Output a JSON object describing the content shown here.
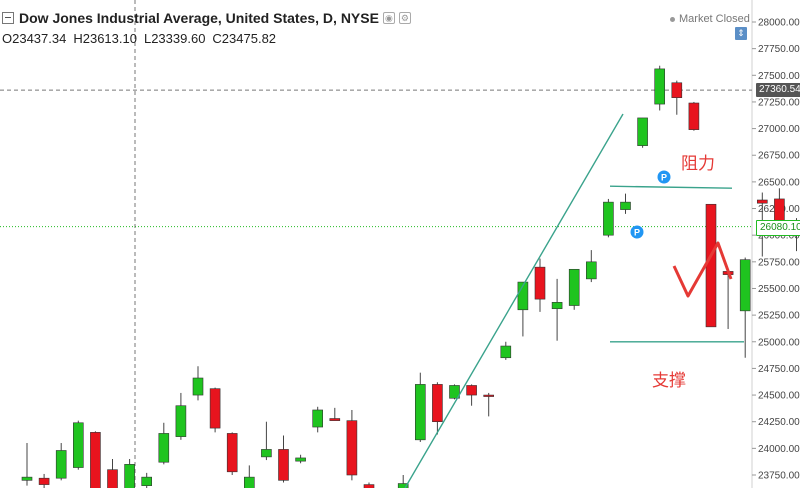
{
  "header": {
    "title": "Dow Jones Industrial Average, United States, D, NYSE",
    "settings_icon": "gear-icon",
    "eye_icon": "eye-icon"
  },
  "ohlc": {
    "open": "O23437.34",
    "high": "H23613.10",
    "low": "L23339.60",
    "close": "C23475.82"
  },
  "market_status": "Market Closed",
  "scale_button_icon": "auto-scale-icon",
  "scale_button_glyph": "⇕",
  "price_labels": {
    "crosshair": "27360.54",
    "last_price": "26080.10"
  },
  "annotations": {
    "resistance": "阻力",
    "support": "支撑",
    "marker_label": "P"
  },
  "colors": {
    "up": "#1fc41f",
    "down": "#e8141e",
    "trendline": "#3aa38c",
    "annotation": "#e53935",
    "last_price_line": "#22bb22",
    "marker": "#2196f3"
  },
  "chart_data": {
    "type": "candlestick",
    "y_ticks": [
      23750,
      24000,
      24250,
      24500,
      24750,
      25000,
      25250,
      25500,
      25750,
      26000,
      26250,
      26500,
      26750,
      27000,
      27250,
      27500,
      27750,
      28000
    ],
    "y_tick_labels": [
      "23750.00",
      "24000.00",
      "24250.00",
      "24500.00",
      "24750.00",
      "25000.00",
      "25250.00",
      "25500.00",
      "25750.00",
      "26000.00",
      "26250.00",
      "26500.00",
      "26750.00",
      "27000.00",
      "27250.00",
      "27500.00",
      "27750.00",
      "28000.00"
    ],
    "ylim": [
      23680,
      28080
    ],
    "candles": [
      {
        "o": 23700,
        "h": 24050,
        "l": 23650,
        "c": 23730
      },
      {
        "o": 23720,
        "h": 23760,
        "l": 23600,
        "c": 23660
      },
      {
        "o": 23720,
        "h": 24050,
        "l": 23700,
        "c": 23980
      },
      {
        "o": 23820,
        "h": 24260,
        "l": 23800,
        "c": 24240
      },
      {
        "o": 24150,
        "h": 24160,
        "l": 23500,
        "c": 23580
      },
      {
        "o": 23800,
        "h": 23900,
        "l": 23500,
        "c": 23500
      },
      {
        "o": 23500,
        "h": 23900,
        "l": 23400,
        "c": 23850
      },
      {
        "o": 23650,
        "h": 23770,
        "l": 23600,
        "c": 23730
      },
      {
        "o": 23870,
        "h": 24240,
        "l": 23850,
        "c": 24140
      },
      {
        "o": 24110,
        "h": 24520,
        "l": 24080,
        "c": 24400
      },
      {
        "o": 24500,
        "h": 24770,
        "l": 24450,
        "c": 24660
      },
      {
        "o": 24560,
        "h": 24570,
        "l": 24150,
        "c": 24190
      },
      {
        "o": 24140,
        "h": 24150,
        "l": 23750,
        "c": 23780
      },
      {
        "o": 23620,
        "h": 23840,
        "l": 23560,
        "c": 23730
      },
      {
        "o": 23920,
        "h": 24250,
        "l": 23890,
        "c": 23990
      },
      {
        "o": 23990,
        "h": 24120,
        "l": 23680,
        "c": 23700
      },
      {
        "o": 23880,
        "h": 23940,
        "l": 23860,
        "c": 23910
      },
      {
        "o": 24200,
        "h": 24390,
        "l": 24150,
        "c": 24360
      },
      {
        "o": 24280,
        "h": 24380,
        "l": 24270,
        "c": 24260
      },
      {
        "o": 24260,
        "h": 24360,
        "l": 23700,
        "c": 23750
      },
      {
        "o": 23660,
        "h": 23680,
        "l": 23500,
        "c": 23550
      },
      {
        "o": 23600,
        "h": 23610,
        "l": 23500,
        "c": 23550
      },
      {
        "o": 23610,
        "h": 23750,
        "l": 23600,
        "c": 23670
      },
      {
        "o": 24080,
        "h": 24710,
        "l": 24060,
        "c": 24600
      },
      {
        "o": 24600,
        "h": 24620,
        "l": 24130,
        "c": 24250
      },
      {
        "o": 24470,
        "h": 24600,
        "l": 24460,
        "c": 24590
      },
      {
        "o": 24590,
        "h": 24600,
        "l": 24400,
        "c": 24500
      },
      {
        "o": 24500,
        "h": 24520,
        "l": 24300,
        "c": 24490
      },
      {
        "o": 24850,
        "h": 25000,
        "l": 24830,
        "c": 24960
      },
      {
        "o": 25300,
        "h": 25560,
        "l": 25050,
        "c": 25560
      },
      {
        "o": 25700,
        "h": 25780,
        "l": 25280,
        "c": 25400
      },
      {
        "o": 25310,
        "h": 25590,
        "l": 25010,
        "c": 25370
      },
      {
        "o": 25340,
        "h": 25680,
        "l": 25300,
        "c": 25680
      },
      {
        "o": 25590,
        "h": 25860,
        "l": 25560,
        "c": 25750
      },
      {
        "o": 26000,
        "h": 26340,
        "l": 25980,
        "c": 26310
      },
      {
        "o": 26240,
        "h": 26390,
        "l": 26200,
        "c": 26310
      },
      {
        "o": 26840,
        "h": 27100,
        "l": 26820,
        "c": 27100
      },
      {
        "o": 27230,
        "h": 27590,
        "l": 27170,
        "c": 27560
      },
      {
        "o": 27430,
        "h": 27450,
        "l": 27130,
        "c": 27290
      },
      {
        "o": 27240,
        "h": 27250,
        "l": 26980,
        "c": 26990
      },
      {
        "o": 26290,
        "h": 26290,
        "l": 25140,
        "c": 25140
      },
      {
        "o": 25660,
        "h": 25660,
        "l": 25120,
        "c": 25630
      },
      {
        "o": 25290,
        "h": 25790,
        "l": 24850,
        "c": 25770
      },
      {
        "o": 26330,
        "h": 26400,
        "l": 25800,
        "c": 26300
      },
      {
        "o": 26340,
        "h": 26440,
        "l": 26090,
        "c": 26140
      },
      {
        "o": 26040,
        "h": 26160,
        "l": 25850,
        "c": 26080
      }
    ],
    "resistance_level": 26450,
    "support_level": 25000,
    "crosshair_price": 27360.54,
    "last_price": 26080.1
  }
}
